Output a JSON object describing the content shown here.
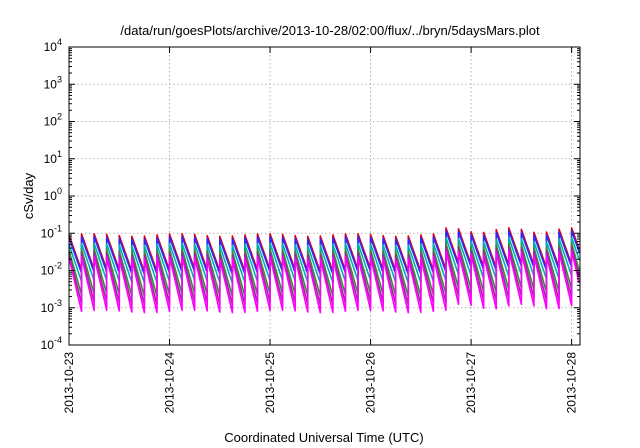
{
  "chart_data": {
    "type": "line",
    "title": "/data/run/goesPlots/archive/2013-10-28/02:00/flux/../bryn/5daysMars.plot",
    "xlabel": "Coordinated Universal Time (UTC)",
    "ylabel": "cSv/day",
    "yscale": "log",
    "ylim": [
      0.0001,
      10000
    ],
    "xlim": [
      "2013-10-23T00:00",
      "2013-10-28T02:00"
    ],
    "y_tick_labels": [
      {
        "value": 0.0001,
        "base": "10",
        "exp": "-4"
      },
      {
        "value": 0.001,
        "base": "10",
        "exp": "-3"
      },
      {
        "value": 0.01,
        "base": "10",
        "exp": "-2"
      },
      {
        "value": 0.1,
        "base": "10",
        "exp": "-1"
      },
      {
        "value": 1,
        "base": "10",
        "exp": "0"
      },
      {
        "value": 10,
        "base": "10",
        "exp": "1"
      },
      {
        "value": 100,
        "base": "10",
        "exp": "2"
      },
      {
        "value": 1000,
        "base": "10",
        "exp": "3"
      },
      {
        "value": 10000,
        "base": "10",
        "exp": "4"
      }
    ],
    "x_tick_labels": [
      "2013-10-23",
      "2013-10-24",
      "2013-10-25",
      "2013-10-26",
      "2013-10-27",
      "2013-10-28"
    ],
    "grid": true,
    "legend": "none",
    "sawtooth_period_hours": 3,
    "series": [
      {
        "color": "#e0001a",
        "peak": 0.09,
        "trough": 0.01
      },
      {
        "color": "#2a2aff",
        "peak": 0.075,
        "trough": 0.0085
      },
      {
        "color": "#00b0b0",
        "peak": 0.05,
        "trough": 0.005
      },
      {
        "color": "#3a8a3a",
        "peak": 0.035,
        "trough": 0.0022
      },
      {
        "color": "#9a2a9a",
        "peak": 0.028,
        "trough": 0.0013
      },
      {
        "color": "#ff00ff",
        "peak": 0.022,
        "trough": 0.0008
      }
    ],
    "enhanced_period": {
      "start_hour": 88,
      "factor": 1.35
    }
  }
}
